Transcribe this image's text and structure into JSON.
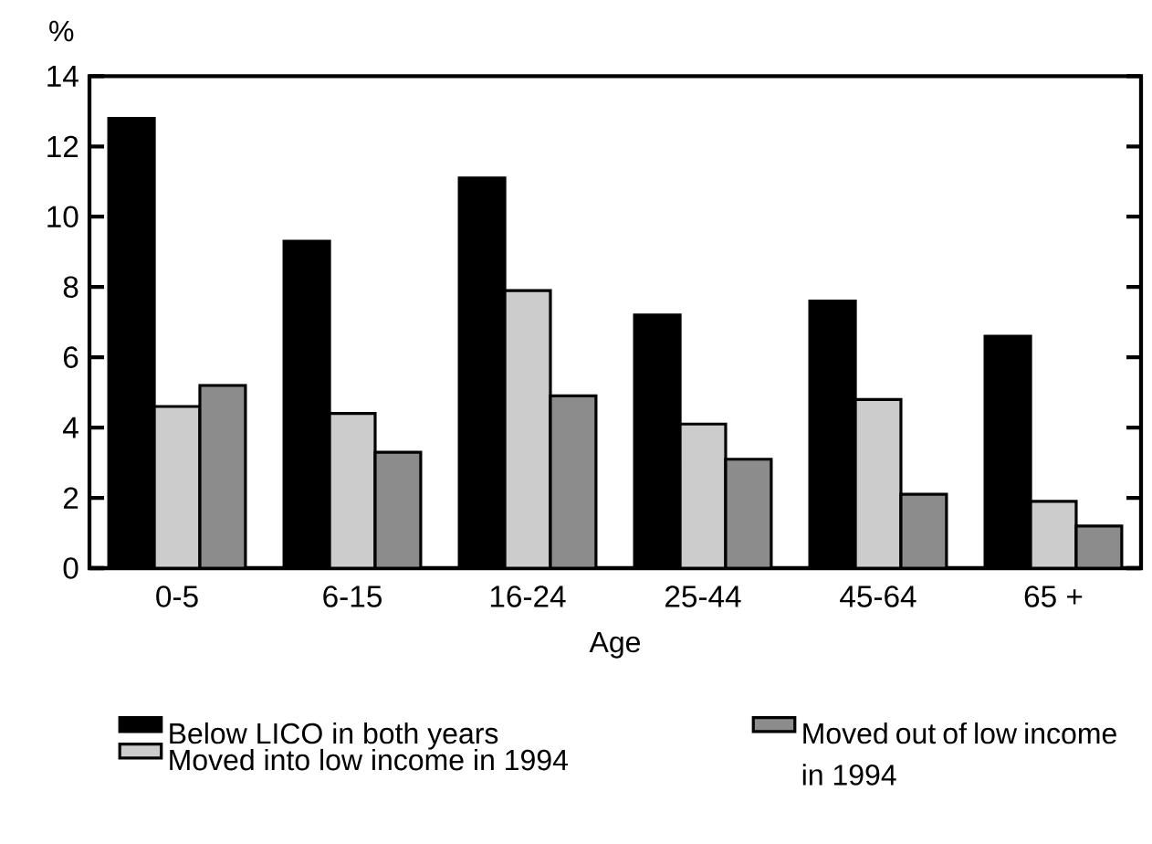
{
  "chart_data": {
    "type": "bar",
    "xlabel": "Age",
    "ylabel": "%",
    "categories": [
      "0-5",
      "6-15",
      "16-24",
      "25-44",
      "45-64",
      "65 +"
    ],
    "series": [
      {
        "name": "Below LICO in both years",
        "color": "#000000",
        "values": [
          12.8,
          9.3,
          11.1,
          7.2,
          7.6,
          6.6
        ]
      },
      {
        "name": "Moved into low income in 1994",
        "color": "#cccccc",
        "values": [
          4.6,
          4.4,
          7.9,
          4.1,
          4.8,
          1.9
        ]
      },
      {
        "name": "Moved out of low income in 1994",
        "color": "#8c8c8c",
        "values": [
          5.2,
          3.3,
          4.9,
          3.1,
          2.1,
          1.2
        ]
      }
    ],
    "ylim": [
      0,
      14
    ],
    "yticks": [
      0,
      2,
      4,
      6,
      8,
      10,
      12,
      14
    ],
    "legend": "bottom"
  }
}
